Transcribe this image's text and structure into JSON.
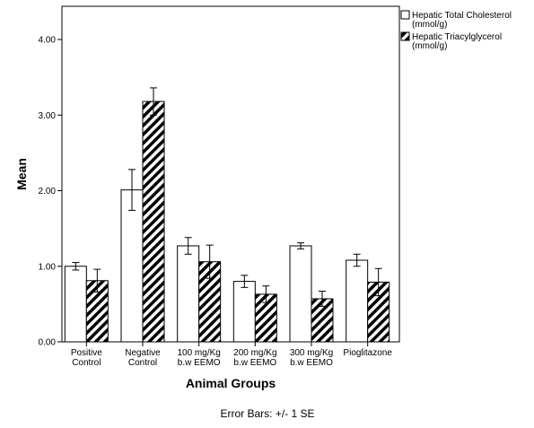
{
  "chart_data": {
    "type": "bar",
    "categories": [
      [
        "Positive",
        "Control"
      ],
      [
        "Negative",
        "Control"
      ],
      [
        "100 mg/Kg",
        "b.w EEMO"
      ],
      [
        "200 mg/Kg",
        "b.w EEMO"
      ],
      [
        "300 mg/Kg",
        "b.w EEMO"
      ],
      [
        "Pioglitazone"
      ]
    ],
    "series": [
      {
        "name": "Hepatic Total Cholesterol (mmol/g)",
        "name_lines": [
          "Hepatic Total Cholesterol",
          "(mmol/g)"
        ],
        "fill": "white",
        "values": [
          1.0,
          2.01,
          1.27,
          0.8,
          1.27,
          1.08
        ],
        "error": [
          0.05,
          0.27,
          0.11,
          0.08,
          0.04,
          0.08
        ]
      },
      {
        "name": "Hepatic Triacylglycerol (mmol/g)",
        "name_lines": [
          "Hepatic Triacylglycerol",
          "(mmol/g)"
        ],
        "fill": "diagonal-hatch",
        "values": [
          0.81,
          3.18,
          1.06,
          0.63,
          0.57,
          0.79
        ],
        "error": [
          0.15,
          0.18,
          0.22,
          0.11,
          0.1,
          0.18
        ]
      }
    ],
    "xlabel": "Animal Groups",
    "ylabel": "Mean",
    "ylim": [
      0,
      4.0
    ],
    "yticks": [
      "0.00",
      "1.00",
      "2.00",
      "3.00",
      "4.00"
    ],
    "grid": false,
    "legend_position": "top-right",
    "footnote": "Error Bars: +/- 1 SE"
  }
}
